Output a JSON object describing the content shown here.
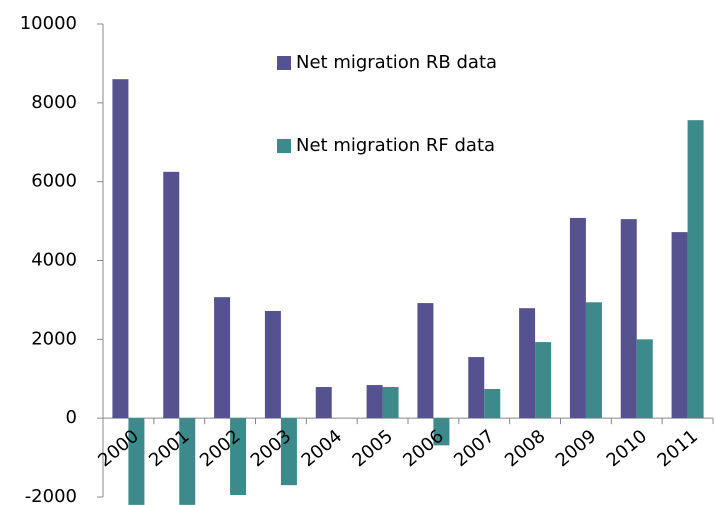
{
  "chart_data": {
    "type": "bar",
    "categories": [
      "2000",
      "2001",
      "2002",
      "2003",
      "2004",
      "2005",
      "2006",
      "2007",
      "2008",
      "2009",
      "2010",
      "2011"
    ],
    "series": [
      {
        "name": "Net migration RB data",
        "color": "#56528f",
        "values": [
          8600,
          6250,
          3070,
          2720,
          790,
          840,
          2920,
          1550,
          2790,
          5080,
          5050,
          4720
        ]
      },
      {
        "name": "Net migration RF data",
        "color": "#3d8a8a",
        "values": [
          -2200,
          -2200,
          -1950,
          -1700,
          0,
          790,
          -690,
          740,
          1930,
          2940,
          2000,
          7560
        ]
      }
    ],
    "ylim": [
      -2000,
      10000
    ],
    "yticks": [
      -2000,
      0,
      2000,
      4000,
      6000,
      8000,
      10000
    ],
    "grid": false
  }
}
